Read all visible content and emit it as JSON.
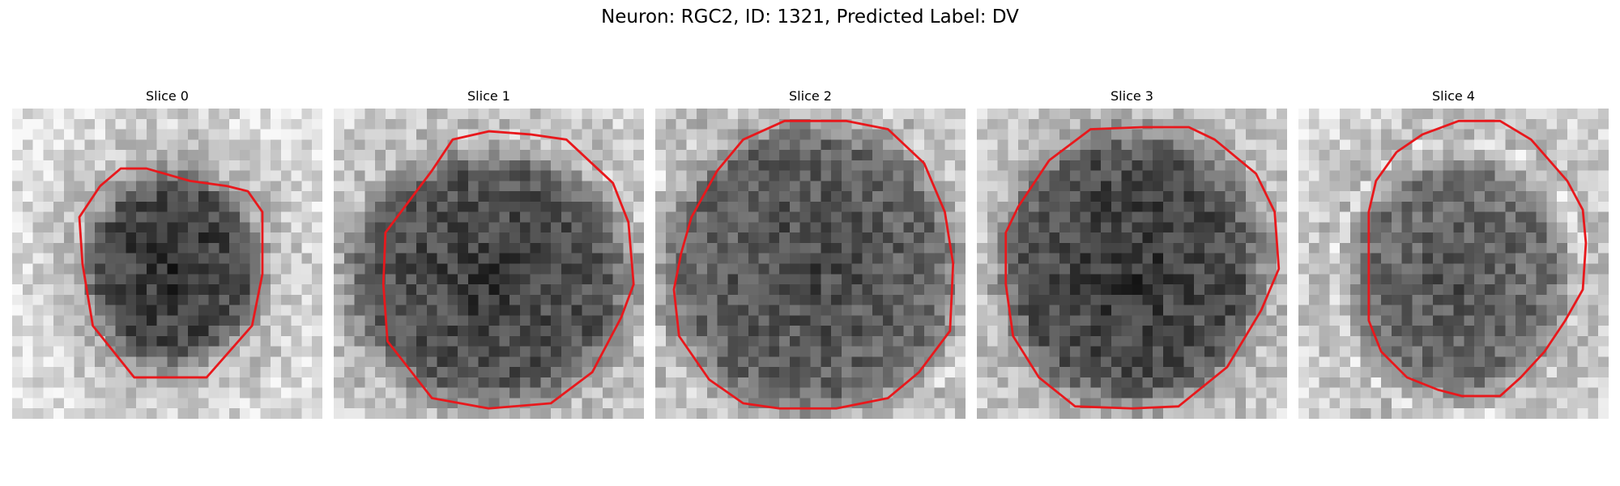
{
  "figure": {
    "title": "Neuron: RGC2, ID: 1321, Predicted Label: DV"
  },
  "colors": {
    "contour": "#e8181c",
    "background": "#ffffff"
  },
  "slices": [
    {
      "title": "Slice 0"
    },
    {
      "title": "Slice 1"
    },
    {
      "title": "Slice 2"
    },
    {
      "title": "Slice 3"
    },
    {
      "title": "Slice 4"
    }
  ]
}
